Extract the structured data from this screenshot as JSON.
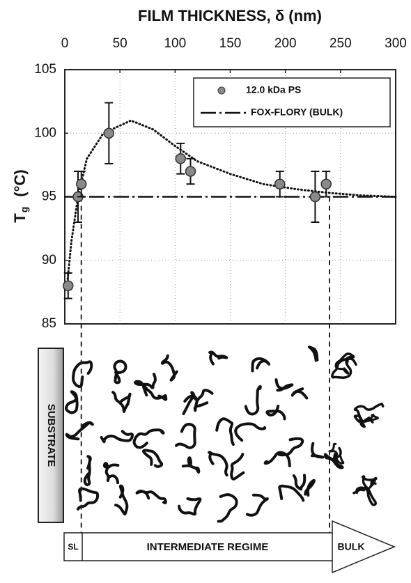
{
  "chart_data": {
    "type": "scatter",
    "title": "FILM THICKNESS, δ (nm)",
    "y_label": "T",
    "y_label_sub": "g",
    "y_label_unit": "(°C)",
    "xlim": [
      0,
      300
    ],
    "xticks": [
      0,
      50,
      100,
      150,
      200,
      250,
      300
    ],
    "ylim": [
      85,
      105
    ],
    "yticks": [
      85,
      90,
      95,
      100,
      105
    ],
    "grid": true,
    "legend": "top-right",
    "series": [
      {
        "name": "12.0 kDa PS",
        "color": "#8a8a8a",
        "x": [
          3,
          12,
          15,
          40,
          105,
          114,
          195,
          227,
          237
        ],
        "values": [
          88,
          95,
          96,
          100,
          98,
          97,
          96,
          95,
          96
        ],
        "errors": [
          1,
          2,
          1,
          2.4,
          1.2,
          1,
          1,
          2,
          1
        ]
      }
    ],
    "bulk": {
      "name": "FOX-FLORY (BULK)",
      "value": 95
    },
    "fit": {
      "x": [
        2,
        6,
        12,
        20,
        35,
        60,
        80,
        100,
        120,
        150,
        180,
        210,
        240,
        270,
        300
      ],
      "values": [
        88,
        91.5,
        95,
        98,
        100,
        101,
        100.3,
        99,
        97.8,
        96.8,
        96,
        95.6,
        95.3,
        95.1,
        95
      ]
    },
    "boundaries": [
      15,
      240
    ],
    "schematic": {
      "substrate": "SUBSTRATE",
      "regimes": [
        "SL",
        "INTERMEDIATE  REGIME",
        "BULK"
      ]
    }
  }
}
